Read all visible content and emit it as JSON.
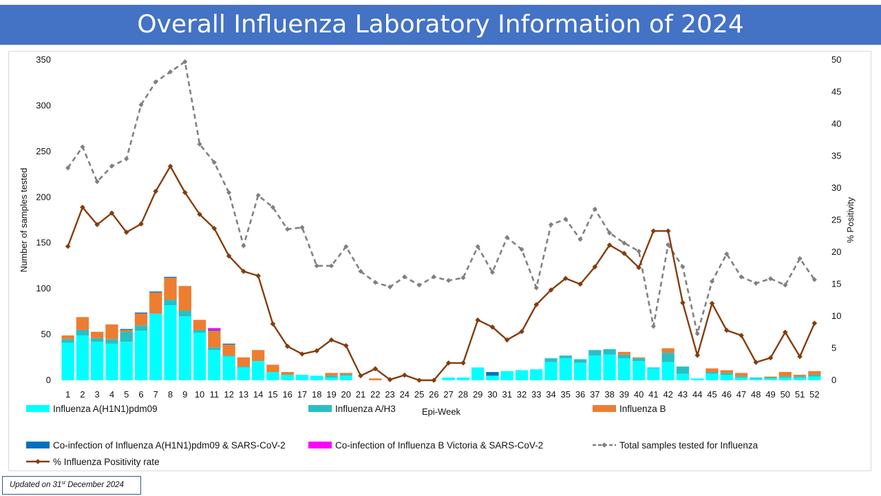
{
  "page": {
    "title": "Overall Influenza Laboratory Information of 2024",
    "update_prefix": "Updated on  31",
    "update_sup": "st",
    "update_suffix": " December  2024"
  },
  "chart_data": {
    "type": "bar",
    "title": "Overall Influenza Laboratory Information of 2024",
    "xlabel": "Epi-Week",
    "ylabel": "Number  of samples tested",
    "y2label": "% Positivity",
    "ylim": [
      0,
      350
    ],
    "y2lim": [
      0,
      50
    ],
    "yticks": [
      0,
      50,
      100,
      150,
      200,
      250,
      300,
      350
    ],
    "y2ticks": [
      0,
      5,
      10,
      15,
      20,
      25,
      30,
      35,
      40,
      45,
      50
    ],
    "categories": [
      "1",
      "2",
      "3",
      "4",
      "5",
      "6",
      "7",
      "8",
      "9",
      "10",
      "11",
      "12",
      "13",
      "14",
      "15",
      "16",
      "17",
      "18",
      "19",
      "20",
      "21",
      "22",
      "23",
      "24",
      "25",
      "26",
      "27",
      "28",
      "29",
      "30",
      "31",
      "32",
      "33",
      "34",
      "35",
      "36",
      "37",
      "38",
      "39",
      "40",
      "41",
      "42",
      "43",
      "44",
      "45",
      "46",
      "47",
      "48",
      "49",
      "50",
      "51",
      "52"
    ],
    "colors": {
      "h1n1": "#00ffff",
      "h3": "#27c0c4",
      "b": "#ed7d31",
      "coinf_a": "#0070c0",
      "coinf_b": "#ff00ff",
      "total": "#808080",
      "positivity": "#843c0c"
    },
    "series": [
      {
        "key": "h1n1",
        "name": "Influenza A(H1N1)pdm09",
        "kind": "bar",
        "values": [
          41,
          49,
          42,
          40,
          42,
          54,
          73,
          82,
          70,
          52,
          33,
          26,
          14,
          21,
          9,
          6,
          6,
          5,
          3,
          5,
          0,
          0,
          0,
          0,
          0,
          0,
          3,
          3,
          14,
          5,
          10,
          11,
          12,
          20,
          24,
          19,
          27,
          28,
          24,
          21,
          13,
          20,
          7,
          2,
          7,
          6,
          3,
          2,
          2,
          3,
          3,
          4
        ]
      },
      {
        "key": "h3",
        "name": "Influenza A/H3",
        "kind": "bar",
        "values": [
          4,
          6,
          4,
          5,
          11,
          6,
          0,
          6,
          6,
          3,
          3,
          1,
          1,
          0,
          0,
          0,
          0,
          0,
          2,
          1,
          0,
          0,
          0,
          0,
          0,
          0,
          0,
          0,
          0,
          0,
          0,
          0,
          0,
          4,
          3,
          4,
          6,
          6,
          4,
          3,
          1,
          10,
          8,
          0,
          2,
          2,
          1,
          1,
          1,
          1,
          1,
          2
        ]
      },
      {
        "key": "b",
        "name": "Influenza B",
        "kind": "bar",
        "values": [
          4,
          14,
          7,
          16,
          2,
          13,
          23,
          24,
          27,
          11,
          18,
          12,
          10,
          12,
          8,
          3,
          0,
          0,
          3,
          2,
          0,
          2,
          0,
          0,
          0,
          0,
          0,
          0,
          0,
          0,
          0,
          0,
          0,
          0,
          0,
          0,
          0,
          0,
          3,
          1,
          0,
          5,
          0,
          0,
          4,
          3,
          4,
          0,
          1,
          5,
          2,
          4
        ]
      },
      {
        "key": "coinf_a",
        "name": "Co-infection of Influenza A(H1N1)pdm09 & SARS-CoV-2",
        "kind": "bar",
        "values": [
          0,
          0,
          0,
          0,
          1,
          1,
          1,
          1,
          0,
          0,
          1,
          1,
          0,
          0,
          0,
          0,
          0,
          0,
          0,
          0,
          0,
          0,
          0,
          0,
          0,
          0,
          0,
          0,
          0,
          4,
          0,
          0,
          0,
          0,
          0,
          0,
          0,
          0,
          0,
          0,
          0,
          0,
          0,
          0,
          0,
          0,
          0,
          0,
          0,
          0,
          0,
          0
        ]
      },
      {
        "key": "coinf_b",
        "name": "Co-infection of Influenza B Victoria & SARS-CoV-2",
        "kind": "bar",
        "values": [
          0,
          0,
          0,
          0,
          0,
          0,
          0,
          0,
          0,
          0,
          2,
          0,
          0,
          0,
          0,
          0,
          0,
          0,
          0,
          0,
          0,
          0,
          0,
          0,
          0,
          0,
          0,
          0,
          0,
          0,
          0,
          0,
          0,
          0,
          0,
          0,
          0,
          0,
          0,
          0,
          0,
          0,
          0,
          0,
          0,
          0,
          0,
          0,
          0,
          0,
          0,
          0
        ]
      },
      {
        "key": "total",
        "name": "Total samples tested for Influenza",
        "kind": "line",
        "axis": "left",
        "values": [
          232,
          255,
          217,
          234,
          242,
          301,
          326,
          337,
          348,
          258,
          238,
          205,
          147,
          202,
          189,
          165,
          167,
          125,
          125,
          146,
          119,
          107,
          102,
          113,
          104,
          113,
          109,
          112,
          146,
          118,
          156,
          143,
          101,
          170,
          176,
          154,
          187,
          161,
          150,
          141,
          59,
          148,
          124,
          51,
          108,
          138,
          113,
          106,
          111,
          104,
          133,
          110
        ]
      },
      {
        "key": "positivity",
        "name": "% Influenza Positivity rate",
        "kind": "line",
        "axis": "right",
        "values": [
          20.9,
          27.0,
          24.3,
          26.1,
          23.1,
          24.4,
          29.5,
          33.4,
          29.3,
          25.9,
          23.7,
          19.4,
          17.0,
          16.3,
          8.8,
          5.3,
          4.1,
          4.6,
          6.3,
          5.4,
          0.7,
          1.8,
          0.1,
          0.8,
          0.0,
          0.0,
          2.7,
          2.7,
          9.4,
          8.3,
          6.3,
          7.6,
          11.8,
          14.1,
          15.9,
          15.0,
          17.7,
          21.1,
          19.8,
          17.6,
          23.3,
          23.3,
          12.1,
          3.9,
          12.0,
          7.8,
          7.0,
          2.8,
          3.5,
          7.5,
          3.7,
          8.9
        ]
      }
    ]
  }
}
